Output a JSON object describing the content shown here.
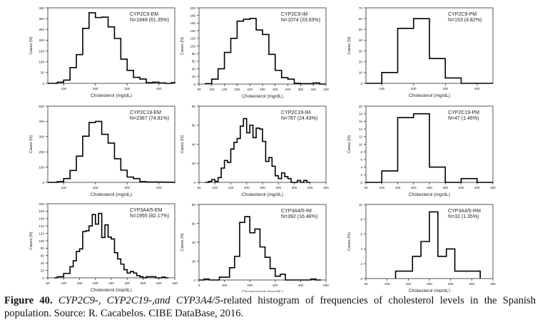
{
  "figure": {
    "caption_label": "Figure 40.",
    "caption_gene1": "CYP2C9-",
    "caption_gene2": "CYP2C19-,and",
    "caption_gene3": "CYP3A4/5",
    "caption_rest": "-related histogram of frequencies of cholesterol levels in the Spanish population. Source: R. Cacabelos. CIBE DataBase, 2016."
  },
  "chart_data": [
    {
      "type": "bar",
      "title": "CYP2C9-EM",
      "subtitle": "N=1948 (61.35%)",
      "xlabel": "Cholesterol (mg/dL)",
      "ylabel": "Cases (N)",
      "xlim": [
        50,
        450
      ],
      "ylim": [
        0,
        350
      ],
      "xticks": [
        100,
        200,
        300,
        400
      ],
      "yticks": [
        0,
        50,
        100,
        150,
        200,
        250,
        300,
        350
      ],
      "bin_width": 20,
      "bin_starts": [
        40,
        60,
        80,
        100,
        120,
        140,
        160,
        180,
        200,
        220,
        240,
        260,
        280,
        300,
        320,
        340,
        360,
        380,
        400,
        420,
        440
      ],
      "values": [
        0,
        0,
        5,
        15,
        73,
        133,
        255,
        327,
        305,
        307,
        262,
        208,
        112,
        60,
        28,
        20,
        3,
        5,
        2,
        0,
        3
      ]
    },
    {
      "type": "bar",
      "title": "CYP2C9-IM",
      "subtitle": "N=1074 (33.83%)",
      "xlabel": "Cholesterol (mg/dL)",
      "ylabel": "Cases (N)",
      "xlim": [
        60,
        460
      ],
      "ylim": [
        0,
        200
      ],
      "xticks": [
        60,
        100,
        140,
        180,
        220,
        260,
        300,
        340,
        380,
        420,
        460
      ],
      "yticks": [
        0,
        20,
        40,
        60,
        80,
        100,
        120,
        140,
        160,
        180,
        200
      ],
      "bin_width": 20,
      "bin_starts": [
        80,
        100,
        120,
        140,
        160,
        180,
        200,
        220,
        240,
        260,
        280,
        300,
        320,
        340,
        360,
        380,
        400,
        420,
        440
      ],
      "values": [
        1,
        13,
        40,
        83,
        120,
        165,
        170,
        172,
        142,
        130,
        78,
        36,
        17,
        13,
        2,
        1,
        1,
        3,
        0
      ]
    },
    {
      "type": "bar",
      "title": "CYP2C9-PM",
      "subtitle": "N=153 (4.82%)",
      "xlabel": "Cholesterol (mg/dL)",
      "ylabel": "Cases (N)",
      "xlim": [
        50,
        450
      ],
      "ylim": [
        0,
        70
      ],
      "xticks": [
        100,
        200,
        300,
        400
      ],
      "yticks": [
        0,
        10,
        20,
        30,
        40,
        50,
        60,
        70
      ],
      "bin_width": 50,
      "bin_starts": [
        50,
        100,
        150,
        200,
        250,
        300,
        350,
        400
      ],
      "values": [
        0,
        10,
        51,
        60,
        23,
        5,
        0,
        0
      ]
    },
    {
      "type": "bar",
      "title": "CYP2C19-EM",
      "subtitle": "N=2387 (74.81%)",
      "xlabel": "Cholesterol (mg/dL)",
      "ylabel": "Cases (N)",
      "xlim": [
        50,
        450
      ],
      "ylim": [
        0,
        500
      ],
      "xticks": [
        100,
        200,
        300,
        400
      ],
      "yticks": [
        0,
        100,
        200,
        300,
        400,
        500
      ],
      "bin_width": 20,
      "bin_starts": [
        40,
        60,
        80,
        100,
        120,
        140,
        160,
        180,
        200,
        220,
        240,
        260,
        280,
        300,
        320,
        340,
        360,
        380,
        400,
        420,
        440
      ],
      "values": [
        0,
        0,
        5,
        25,
        78,
        172,
        303,
        393,
        400,
        315,
        258,
        155,
        80,
        35,
        25,
        5,
        2,
        2,
        2,
        1,
        1
      ]
    },
    {
      "type": "bar",
      "title": "CYP2C19-IM",
      "subtitle": "N=787 (24.43%)",
      "xlabel": "Cholesterol (mg/dL)",
      "ylabel": "Cases (N)",
      "xlim": [
        50,
        450
      ],
      "ylim": [
        0,
        80
      ],
      "xticks": [
        50,
        100,
        150,
        200,
        250,
        300,
        350,
        400,
        450
      ],
      "yticks": [
        0,
        20,
        40,
        60,
        80
      ],
      "bin_width": 10,
      "bin_starts": [
        70,
        80,
        90,
        100,
        110,
        120,
        130,
        140,
        150,
        160,
        170,
        180,
        190,
        200,
        210,
        220,
        230,
        240,
        250,
        260,
        270,
        280,
        290,
        300,
        310,
        320,
        330,
        340,
        350,
        360,
        370,
        380,
        390
      ],
      "values": [
        0,
        1,
        3,
        1,
        5,
        15,
        23,
        21,
        35,
        42,
        46,
        59,
        67,
        52,
        60,
        47,
        57,
        56,
        43,
        22,
        26,
        17,
        7,
        4,
        10,
        6,
        4,
        0,
        0,
        2,
        0,
        2,
        0
      ]
    },
    {
      "type": "bar",
      "title": "CYP2C19-PM",
      "subtitle": "N=47 (1.46%)",
      "xlabel": "Cholesterol (mg/dL)",
      "ylabel": "Cases (N)",
      "xlim": [
        50,
        450
      ],
      "ylim": [
        0,
        20
      ],
      "xticks": [
        50,
        100,
        150,
        200,
        250,
        300,
        350,
        400,
        450
      ],
      "yticks": [
        0,
        2,
        4,
        6,
        8,
        10,
        12,
        14,
        16,
        18,
        20
      ],
      "bin_width": 50,
      "bin_starts": [
        50,
        100,
        150,
        200,
        250,
        300,
        350,
        400
      ],
      "values": [
        0,
        3,
        17,
        18,
        4,
        0,
        1,
        0
      ]
    },
    {
      "type": "bar",
      "title": "CYP3A4/5-EM",
      "subtitle": "N=1955 (82.17%)",
      "xlabel": "Cholesterol (mg/dL)",
      "ylabel": "Cases (N)",
      "xlim": [
        50,
        450
      ],
      "ylim": [
        0,
        200
      ],
      "xticks": [
        50,
        100,
        150,
        200,
        250,
        300,
        350,
        400,
        450
      ],
      "yticks": [
        0,
        20,
        40,
        60,
        80,
        100,
        120,
        140,
        160,
        180,
        200
      ],
      "bin_width": 10,
      "bin_starts": [
        70,
        80,
        90,
        100,
        110,
        120,
        130,
        140,
        150,
        160,
        170,
        180,
        190,
        200,
        210,
        220,
        230,
        240,
        250,
        260,
        270,
        280,
        290,
        300,
        310,
        320,
        330,
        340,
        350,
        360,
        370,
        380,
        390,
        400,
        410,
        420
      ],
      "values": [
        0,
        3,
        3,
        12,
        12,
        30,
        46,
        71,
        78,
        125,
        127,
        140,
        171,
        145,
        174,
        109,
        143,
        110,
        105,
        68,
        51,
        37,
        22,
        13,
        17,
        13,
        6,
        3,
        0,
        3,
        3,
        3,
        0,
        0,
        2,
        0
      ]
    },
    {
      "type": "bar",
      "title": "CYP3A4/5-IM",
      "subtitle": "N=392 (16.48%)",
      "xlabel": "Cholesterol (mg/dL)",
      "ylabel": "Cases (N)",
      "xlim": [
        0,
        500
      ],
      "ylim": [
        0,
        80
      ],
      "xticks": [
        0,
        100,
        200,
        300,
        400,
        500
      ],
      "yticks": [
        0,
        20,
        40,
        60,
        80
      ],
      "bin_width": 20,
      "bin_starts": [
        0,
        20,
        40,
        60,
        80,
        100,
        120,
        140,
        160,
        180,
        200,
        220,
        240,
        260,
        280,
        300,
        320,
        340,
        360,
        380,
        400,
        420,
        440,
        460
      ],
      "values": [
        0,
        1,
        0,
        0,
        3,
        3,
        13,
        25,
        61,
        67,
        50,
        54,
        35,
        24,
        12,
        4,
        6,
        0,
        0,
        0,
        0,
        0,
        1,
        0
      ]
    },
    {
      "type": "bar",
      "title": "CYP3A4/5-RM",
      "subtitle": "N=32 (1.35%)",
      "xlabel": "Cholesterol (mg/dL)",
      "ylabel": "Cases (%)",
      "xlim": [
        50,
        350
      ],
      "ylim": [
        0,
        10
      ],
      "xticks": [
        50,
        100,
        150,
        200,
        250,
        300,
        350
      ],
      "yticks": [
        0,
        2,
        4,
        6,
        8,
        10
      ],
      "bin_width": 20,
      "bin_starts": [
        120,
        140,
        160,
        180,
        200,
        220,
        240,
        260,
        280,
        300
      ],
      "values": [
        1,
        1,
        3,
        5,
        9,
        3,
        4,
        1,
        1,
        1
      ]
    }
  ]
}
